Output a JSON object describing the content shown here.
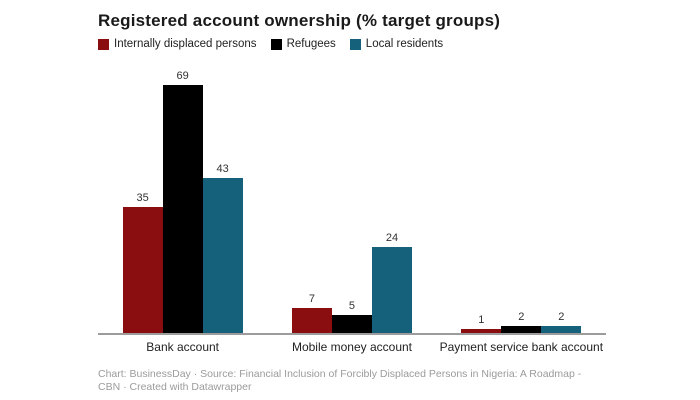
{
  "header": {
    "title": "Registered account ownership (% target groups)"
  },
  "legend": {
    "items": [
      {
        "label": "Internally displaced persons",
        "color": "#8a0e10"
      },
      {
        "label": "Refugees",
        "color": "#000000"
      },
      {
        "label": "Local residents",
        "color": "#15607a"
      }
    ]
  },
  "chart_data": {
    "type": "bar",
    "title": "Registered account ownership (% target groups)",
    "categories": [
      "Bank account",
      "Mobile money account",
      "Payment service bank account"
    ],
    "series": [
      {
        "name": "Internally displaced persons",
        "color": "#8a0e10",
        "values": [
          35,
          7,
          1
        ]
      },
      {
        "name": "Refugees",
        "color": "#000000",
        "values": [
          69,
          5,
          2
        ]
      },
      {
        "name": "Local residents",
        "color": "#15607a",
        "values": [
          43,
          24,
          2
        ]
      }
    ],
    "value_labels": true,
    "ylim": [
      0,
      69
    ],
    "y_axis_visible": false,
    "grid": false,
    "legend_position": "top",
    "xlabel": "",
    "ylabel": ""
  },
  "footer": {
    "text": "Chart: BusinessDay · Source: Financial Inclusion of Forcibly Displaced Persons in Nigeria: A Roadmap - CBN · Created with Datawrapper"
  },
  "colors": {
    "background": "#ffffff",
    "axis_line": "#9c9c9c",
    "category_label": "#222222",
    "value_label": "#333333",
    "footer_text": "#9b9b9b",
    "title": "#1a1a1a"
  }
}
